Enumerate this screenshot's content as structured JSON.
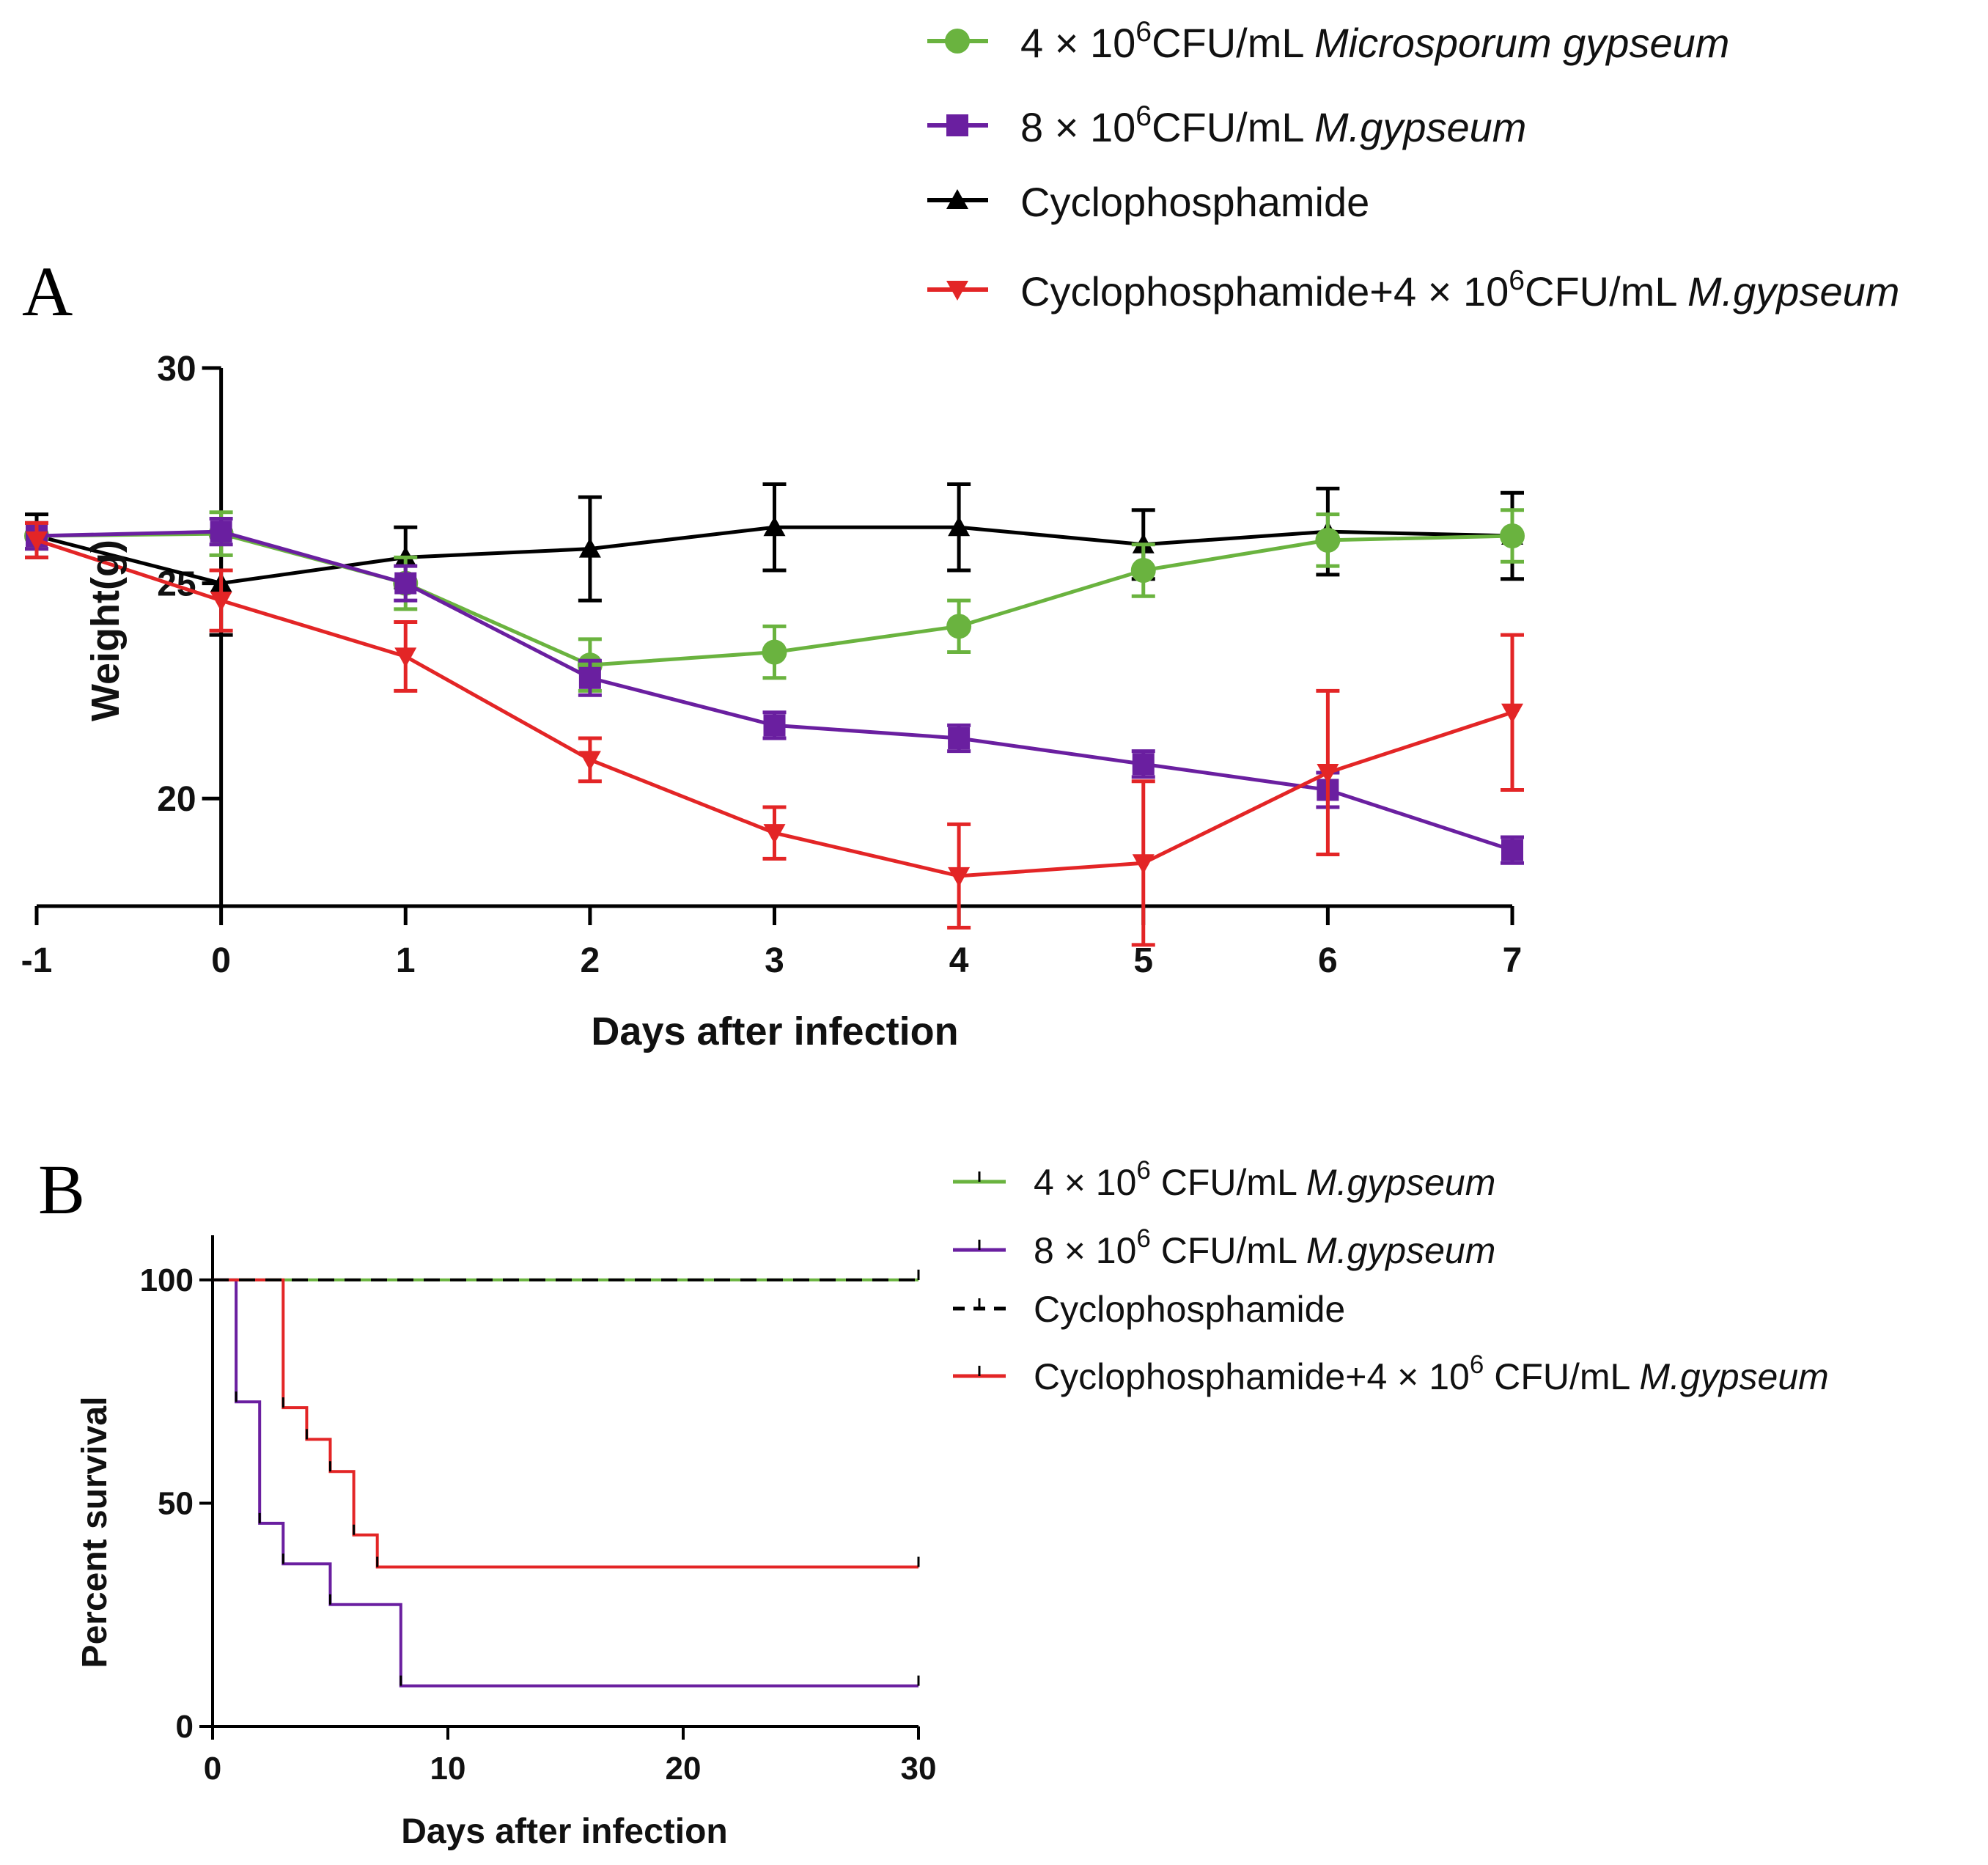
{
  "panels": [
    {
      "letter": "A",
      "type": "line",
      "xlabel": "Days after infection",
      "ylabel": "Weight(g)",
      "xlim": [
        -1,
        7
      ],
      "ylim": [
        17.5,
        30
      ],
      "xticks": [
        "-1",
        "0",
        "1",
        "2",
        "3",
        "4",
        "5",
        "6",
        "7"
      ],
      "xtick_values": [
        -1,
        0,
        1,
        2,
        3,
        4,
        5,
        6,
        7
      ],
      "yticks": [
        "20",
        "25",
        "30"
      ],
      "ytick_values": [
        20,
        25,
        30
      ],
      "x": [
        -1,
        0,
        1,
        2,
        3,
        4,
        5,
        6,
        7
      ],
      "series": [
        {
          "legend": {
            "pre": "4 × 10",
            "sup": "6",
            "mid": "CFU/mL ",
            "ital": "Microsporum gypseum"
          },
          "color": "#6ab33f",
          "marker": "circle",
          "values": [
            26.1,
            26.15,
            25.0,
            23.1,
            23.4,
            24.0,
            25.3,
            26.0,
            26.1
          ],
          "errors": [
            0.3,
            0.5,
            0.6,
            0.6,
            0.6,
            0.6,
            0.6,
            0.6,
            0.6
          ]
        },
        {
          "legend": {
            "pre": "8 × 10",
            "sup": "6",
            "mid": "CFU/mL ",
            "ital": "M.gypseum"
          },
          "color": "#6a1fa0",
          "marker": "square",
          "values": [
            26.1,
            26.2,
            25.0,
            22.8,
            21.7,
            21.4,
            20.8,
            20.2,
            18.8
          ],
          "errors": [
            0.3,
            0.3,
            0.4,
            0.4,
            0.3,
            0.3,
            0.3,
            0.4,
            0.3
          ]
        },
        {
          "legend": {
            "pre": "Cyclophosphamide",
            "sup": "",
            "mid": "",
            "ital": ""
          },
          "color": "#000000",
          "marker": "triangle-up",
          "values": [
            26.1,
            25.0,
            25.6,
            25.8,
            26.3,
            26.3,
            25.9,
            26.2,
            26.1
          ],
          "errors": [
            0.5,
            1.2,
            0.7,
            1.2,
            1.0,
            1.0,
            0.8,
            1.0,
            1.0
          ]
        },
        {
          "legend": {
            "pre": "Cyclophosphamide+4 × 10",
            "sup": "6",
            "mid": "CFU/mL ",
            "ital": "M.gypseum"
          },
          "color": "#e32526",
          "marker": "triangle-down",
          "values": [
            26.0,
            24.6,
            23.3,
            20.9,
            19.2,
            18.2,
            18.5,
            20.6,
            22.0
          ],
          "errors": [
            0.4,
            0.7,
            0.8,
            0.5,
            0.6,
            1.2,
            1.9,
            1.9,
            1.8
          ]
        }
      ]
    },
    {
      "letter": "B",
      "type": "step",
      "xlabel": "Days after infection",
      "ylabel": "Percent survival",
      "xlim": [
        0,
        30
      ],
      "ylim": [
        0,
        110
      ],
      "xticks": [
        "0",
        "10",
        "20",
        "30"
      ],
      "xtick_values": [
        0,
        10,
        20,
        30
      ],
      "yticks": [
        "0",
        "50",
        "100"
      ],
      "ytick_values": [
        0,
        50,
        100
      ],
      "series": [
        {
          "legend": {
            "pre": "4 × 10",
            "sup": "6",
            "mid": " CFU/mL ",
            "ital": "M.gypseum"
          },
          "color": "#6ab33f",
          "dashed": false,
          "steps": [
            [
              0,
              100
            ],
            [
              30,
              100
            ]
          ]
        },
        {
          "legend": {
            "pre": "8 × 10",
            "sup": "6",
            "mid": " CFU/mL ",
            "ital": "M.gypseum"
          },
          "color": "#6a1fa0",
          "dashed": false,
          "steps": [
            [
              0,
              100
            ],
            [
              1,
              72.7
            ],
            [
              2,
              45.5
            ],
            [
              3,
              36.4
            ],
            [
              5,
              27.3
            ],
            [
              8,
              9.1
            ],
            [
              30,
              9.1
            ]
          ]
        },
        {
          "legend": {
            "pre": "Cyclophosphamide",
            "sup": "",
            "mid": "",
            "ital": ""
          },
          "color": "#000000",
          "dashed": true,
          "steps": [
            [
              0,
              100
            ],
            [
              30,
              100
            ]
          ]
        },
        {
          "legend": {
            "pre": "Cyclophosphamide+4 × 10",
            "sup": "6",
            "mid": " CFU/mL ",
            "ital": "M.gypseum"
          },
          "color": "#e32526",
          "dashed": false,
          "steps": [
            [
              0,
              100
            ],
            [
              3,
              71.4
            ],
            [
              4,
              64.3
            ],
            [
              5,
              57.1
            ],
            [
              6,
              42.9
            ],
            [
              7,
              35.7
            ],
            [
              30,
              35.7
            ]
          ]
        }
      ]
    }
  ]
}
